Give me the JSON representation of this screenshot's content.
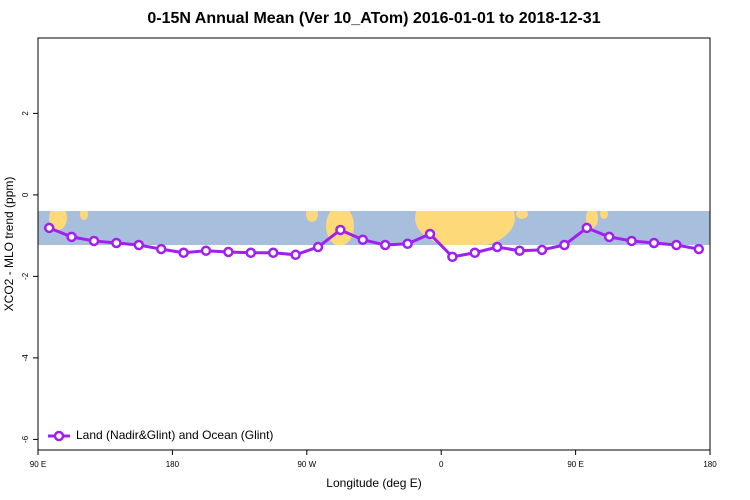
{
  "chart_data": {
    "type": "line",
    "title": "0-15N Annual Mean (Ver 10_ATom)   2016-01-01 to 2018-12-31",
    "x_label": "Longitude (deg E)",
    "y_label": "XCO2 - MLO trend (ppm)",
    "x": [
      97.5,
      112.5,
      127.5,
      142.5,
      157.5,
      172.5,
      187.5,
      202.5,
      217.5,
      232.5,
      247.5,
      262.5,
      277.5,
      292.5,
      307.5,
      322.5,
      337.5,
      352.5,
      367.5,
      382.5,
      397.5,
      412.5,
      427.5,
      442.5,
      457.5,
      472.5,
      487.5,
      502.5,
      517.5,
      532.5
    ],
    "series": [
      {
        "name": "Land (Nadir&Glint) and Ocean (Glint)",
        "color": "#a020f0",
        "values": [
          -0.81,
          -1.03,
          -1.13,
          -1.18,
          -1.23,
          -1.33,
          -1.42,
          -1.37,
          -1.4,
          -1.42,
          -1.42,
          -1.47,
          -1.28,
          -0.86,
          -1.1,
          -1.23,
          -1.2,
          -0.96,
          -1.52,
          -1.42,
          -1.28,
          -1.37,
          -1.35,
          -1.23,
          -0.81,
          -1.03,
          -1.13,
          -1.18,
          -1.23,
          -1.33
        ]
      }
    ],
    "xlim": [
      90,
      540
    ],
    "xticks": [
      {
        "value": 90,
        "label": "90 E"
      },
      {
        "value": 180,
        "label": "180"
      },
      {
        "value": 270,
        "label": "90 W"
      },
      {
        "value": 360,
        "label": "0"
      },
      {
        "value": 450,
        "label": "90 E"
      },
      {
        "value": 540,
        "label": "180"
      }
    ],
    "ylim": [
      -6.26,
      3.85
    ],
    "yticks": [
      -6,
      -4,
      -2,
      0,
      2
    ],
    "legend": "bottom-left"
  }
}
